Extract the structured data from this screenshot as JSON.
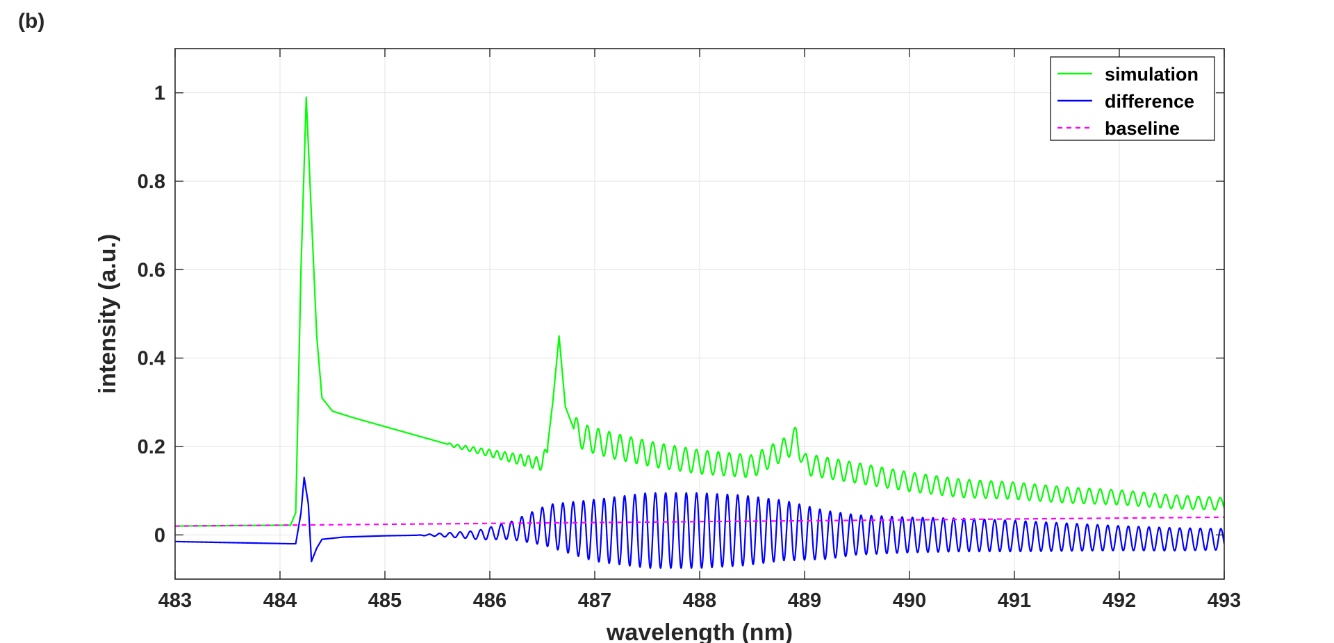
{
  "panel_label": "(b)",
  "chart_data": {
    "type": "line",
    "xlabel": "wavelength (nm)",
    "ylabel": "intensity (a.u.)",
    "xlim": [
      483,
      493
    ],
    "ylim": [
      -0.1,
      1.1
    ],
    "xticks": [
      483,
      484,
      485,
      486,
      487,
      488,
      489,
      490,
      491,
      492,
      493
    ],
    "xtick_labels": [
      "483",
      "484",
      "485",
      "486",
      "487",
      "488",
      "489",
      "490",
      "491",
      "492",
      "493"
    ],
    "yticks": [
      0,
      0.2,
      0.4,
      0.6,
      0.8,
      1
    ],
    "ytick_labels": [
      "0",
      "0.2",
      "0.4",
      "0.6",
      "0.8",
      "1"
    ],
    "grid": true,
    "legend_position": "top-right",
    "series": [
      {
        "name": "simulation",
        "color": "#00ff00",
        "style": "solid",
        "x": [
          483.0,
          484.1,
          484.15,
          484.2,
          484.25,
          484.3,
          484.35,
          484.4,
          484.5,
          484.7,
          485.0,
          485.3,
          485.6,
          485.9,
          486.2,
          486.5,
          486.55,
          486.6,
          486.66,
          486.72,
          486.8,
          486.9,
          487.2,
          487.6,
          488.0,
          488.5,
          488.85,
          488.92,
          489.0,
          489.5,
          490.0,
          490.5,
          491.0,
          491.5,
          492.0,
          492.5,
          493.0
        ],
        "y": [
          0.02,
          0.022,
          0.05,
          0.6,
          0.99,
          0.72,
          0.45,
          0.31,
          0.28,
          0.265,
          0.245,
          0.225,
          0.205,
          0.19,
          0.175,
          0.16,
          0.2,
          0.3,
          0.45,
          0.29,
          0.24,
          0.22,
          0.2,
          0.18,
          0.165,
          0.155,
          0.2,
          0.222,
          0.16,
          0.14,
          0.12,
          0.105,
          0.1,
          0.09,
          0.085,
          0.075,
          0.07
        ]
      },
      {
        "name": "difference",
        "color": "#0000ff",
        "style": "solid",
        "x": [
          483.0,
          484.1,
          484.15,
          484.2,
          484.23,
          484.27,
          484.3,
          484.35,
          484.4,
          484.6,
          485.0,
          485.5,
          485.9,
          486.2,
          486.5,
          486.6,
          487.0,
          487.5,
          488.0,
          488.4,
          488.8,
          489.2,
          489.8,
          490.5,
          491.5,
          492.5,
          493.0
        ],
        "y": [
          -0.015,
          -0.02,
          -0.02,
          0.05,
          0.13,
          0.07,
          -0.06,
          -0.03,
          -0.01,
          -0.005,
          -0.002,
          0.0,
          0.0,
          0.01,
          0.02,
          0.02,
          0.01,
          0.01,
          0.01,
          0.01,
          0.01,
          0.0,
          0.0,
          0.0,
          -0.005,
          -0.01,
          -0.01
        ]
      },
      {
        "name": "baseline",
        "color": "#ff00ff",
        "style": "dashed",
        "x": [
          483.0,
          493.0
        ],
        "y": [
          0.02,
          0.04
        ]
      }
    ],
    "oscillations": [
      {
        "series": "simulation",
        "x_start": 485.6,
        "x_end": 486.55,
        "period": 0.075,
        "amp_start": 0.003,
        "amp_end": 0.015
      },
      {
        "series": "simulation",
        "x_start": 486.8,
        "x_end": 493.0,
        "period": 0.104,
        "amp_start": 0.03,
        "amp_end": 0.014
      },
      {
        "series": "difference",
        "x_start": 485.3,
        "x_end": 493.0,
        "period": 0.098,
        "envelope_x": [
          485.3,
          485.8,
          486.2,
          486.6,
          487.0,
          487.5,
          488.0,
          488.4,
          488.9,
          489.5,
          490.0,
          491.0,
          492.0,
          493.0
        ],
        "envelope_amp": [
          0.0,
          0.008,
          0.02,
          0.05,
          0.07,
          0.085,
          0.085,
          0.08,
          0.065,
          0.045,
          0.04,
          0.035,
          0.028,
          0.024
        ]
      }
    ]
  }
}
